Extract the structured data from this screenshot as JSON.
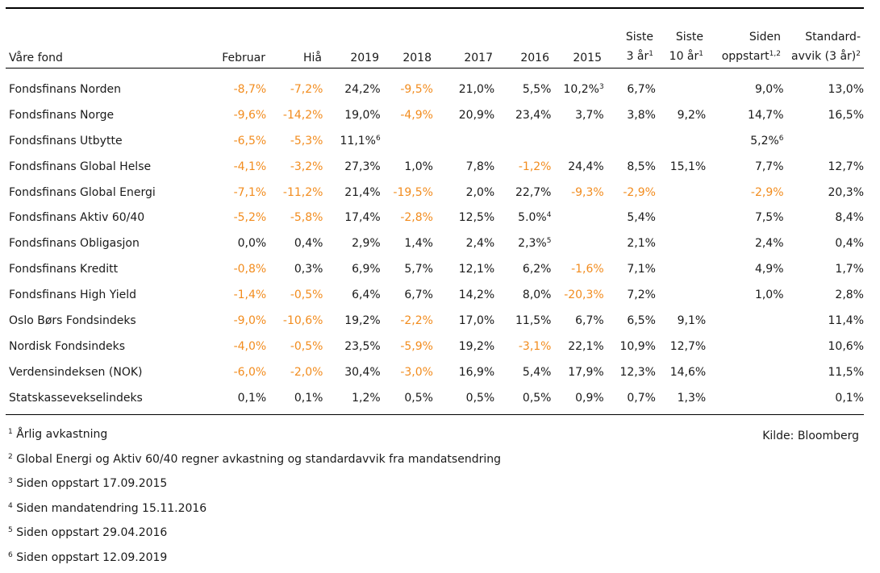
{
  "header": {
    "fund": "Våre fond",
    "februar": "Februar",
    "hia": "Hiå",
    "y2019": "2019",
    "y2018": "2018",
    "y2017": "2017",
    "y2016": "2016",
    "y2015": "2015",
    "siste3_l1": "Siste",
    "siste3_l2": "3 år",
    "siste3_sup": "1",
    "siste10_l1": "Siste",
    "siste10_l2": "10 år",
    "siste10_sup": "1",
    "siden_l1": "Siden",
    "siden_l2": "oppstart",
    "siden_sup": "1,2",
    "std_l1": "Standard-",
    "std_l2": "avvik (3 år)",
    "std_sup": "2"
  },
  "colors": {
    "negative": "#f28c1e",
    "text": "#1a1a1a",
    "rule": "#000000"
  },
  "rows": [
    {
      "name": "Fondsfinans Norden",
      "cells": [
        {
          "v": "-8,7%",
          "neg": true
        },
        {
          "v": "-7,2%",
          "neg": true
        },
        {
          "v": "24,2%"
        },
        {
          "v": "-9,5%",
          "neg": true
        },
        {
          "v": "21,0%"
        },
        {
          "v": "5,5%"
        },
        {
          "v": "10,2%",
          "sup": "3"
        },
        {
          "v": "6,7%"
        },
        {
          "v": ""
        },
        {
          "v": "9,0%"
        },
        {
          "v": "13,0%"
        }
      ]
    },
    {
      "name": "Fondsfinans Norge",
      "cells": [
        {
          "v": "-9,6%",
          "neg": true
        },
        {
          "v": "-14,2%",
          "neg": true
        },
        {
          "v": "19,0%"
        },
        {
          "v": "-4,9%",
          "neg": true
        },
        {
          "v": "20,9%"
        },
        {
          "v": "23,4%"
        },
        {
          "v": "3,7%"
        },
        {
          "v": "3,8%"
        },
        {
          "v": "9,2%"
        },
        {
          "v": "14,7%"
        },
        {
          "v": "16,5%"
        }
      ]
    },
    {
      "name": "Fondsfinans Utbytte",
      "cells": [
        {
          "v": "-6,5%",
          "neg": true
        },
        {
          "v": "-5,3%",
          "neg": true
        },
        {
          "v": "11,1%",
          "sup": "6"
        },
        {
          "v": ""
        },
        {
          "v": ""
        },
        {
          "v": ""
        },
        {
          "v": ""
        },
        {
          "v": ""
        },
        {
          "v": ""
        },
        {
          "v": "5,2%",
          "sup": "6"
        },
        {
          "v": ""
        }
      ]
    },
    {
      "name": "Fondsfinans Global Helse",
      "cells": [
        {
          "v": "-4,1%",
          "neg": true
        },
        {
          "v": "-3,2%",
          "neg": true
        },
        {
          "v": "27,3%"
        },
        {
          "v": "1,0%"
        },
        {
          "v": "7,8%"
        },
        {
          "v": "-1,2%",
          "neg": true
        },
        {
          "v": "24,4%"
        },
        {
          "v": "8,5%"
        },
        {
          "v": "15,1%"
        },
        {
          "v": "7,7%"
        },
        {
          "v": "12,7%"
        }
      ]
    },
    {
      "name": "Fondsfinans Global Energi",
      "cells": [
        {
          "v": "-7,1%",
          "neg": true
        },
        {
          "v": "-11,2%",
          "neg": true
        },
        {
          "v": "21,4%"
        },
        {
          "v": "-19,5%",
          "neg": true
        },
        {
          "v": "2,0%"
        },
        {
          "v": "22,7%"
        },
        {
          "v": "-9,3%",
          "neg": true
        },
        {
          "v": "-2,9%",
          "neg": true
        },
        {
          "v": ""
        },
        {
          "v": "-2,9%",
          "neg": true
        },
        {
          "v": "20,3%"
        }
      ]
    },
    {
      "name": "Fondsfinans Aktiv 60/40",
      "cells": [
        {
          "v": "-5,2%",
          "neg": true
        },
        {
          "v": "-5,8%",
          "neg": true
        },
        {
          "v": "17,4%"
        },
        {
          "v": "-2,8%",
          "neg": true
        },
        {
          "v": "12,5%"
        },
        {
          "v": "5.0%",
          "sup": "4"
        },
        {
          "v": ""
        },
        {
          "v": "5,4%"
        },
        {
          "v": ""
        },
        {
          "v": "7,5%"
        },
        {
          "v": "8,4%"
        }
      ]
    },
    {
      "name": "Fondsfinans Obligasjon",
      "cells": [
        {
          "v": "0,0%"
        },
        {
          "v": "0,4%"
        },
        {
          "v": "2,9%"
        },
        {
          "v": "1,4%"
        },
        {
          "v": "2,4%"
        },
        {
          "v": "2,3%",
          "sup": "5"
        },
        {
          "v": ""
        },
        {
          "v": "2,1%"
        },
        {
          "v": ""
        },
        {
          "v": "2,4%"
        },
        {
          "v": "0,4%"
        }
      ]
    },
    {
      "name": "Fondsfinans Kreditt",
      "cells": [
        {
          "v": "-0,8%",
          "neg": true
        },
        {
          "v": "0,3%"
        },
        {
          "v": "6,9%"
        },
        {
          "v": "5,7%"
        },
        {
          "v": "12,1%"
        },
        {
          "v": "6,2%"
        },
        {
          "v": "-1,6%",
          "neg": true
        },
        {
          "v": "7,1%"
        },
        {
          "v": ""
        },
        {
          "v": "4,9%"
        },
        {
          "v": "1,7%"
        }
      ]
    },
    {
      "name": "Fondsfinans High Yield",
      "cells": [
        {
          "v": "-1,4%",
          "neg": true
        },
        {
          "v": "-0,5%",
          "neg": true
        },
        {
          "v": "6,4%"
        },
        {
          "v": "6,7%"
        },
        {
          "v": "14,2%"
        },
        {
          "v": "8,0%"
        },
        {
          "v": "-20,3%",
          "neg": true
        },
        {
          "v": "7,2%"
        },
        {
          "v": ""
        },
        {
          "v": "1,0%"
        },
        {
          "v": "2,8%"
        }
      ]
    },
    {
      "name": "Oslo Børs Fondsindeks",
      "cells": [
        {
          "v": "-9,0%",
          "neg": true
        },
        {
          "v": "-10,6%",
          "neg": true
        },
        {
          "v": "19,2%"
        },
        {
          "v": "-2,2%",
          "neg": true
        },
        {
          "v": "17,0%"
        },
        {
          "v": "11,5%"
        },
        {
          "v": "6,7%"
        },
        {
          "v": "6,5%"
        },
        {
          "v": "9,1%"
        },
        {
          "v": ""
        },
        {
          "v": "11,4%"
        }
      ]
    },
    {
      "name": "Nordisk Fondsindeks",
      "cells": [
        {
          "v": "-4,0%",
          "neg": true
        },
        {
          "v": "-0,5%",
          "neg": true
        },
        {
          "v": "23,5%"
        },
        {
          "v": "-5,9%",
          "neg": true
        },
        {
          "v": "19,2%"
        },
        {
          "v": "-3,1%",
          "neg": true
        },
        {
          "v": "22,1%"
        },
        {
          "v": "10,9%"
        },
        {
          "v": "12,7%"
        },
        {
          "v": ""
        },
        {
          "v": "10,6%"
        }
      ]
    },
    {
      "name": "Verdensindeksen (NOK)",
      "cells": [
        {
          "v": "-6,0%",
          "neg": true
        },
        {
          "v": "-2,0%",
          "neg": true
        },
        {
          "v": "30,4%"
        },
        {
          "v": "-3,0%",
          "neg": true
        },
        {
          "v": "16,9%"
        },
        {
          "v": "5,4%"
        },
        {
          "v": "17,9%"
        },
        {
          "v": "12,3%"
        },
        {
          "v": "14,6%"
        },
        {
          "v": ""
        },
        {
          "v": "11,5%"
        }
      ]
    },
    {
      "name": "Statskassevekselindeks",
      "cells": [
        {
          "v": "0,1%"
        },
        {
          "v": "0,1%"
        },
        {
          "v": "1,2%"
        },
        {
          "v": "0,5%"
        },
        {
          "v": "0,5%"
        },
        {
          "v": "0,5%"
        },
        {
          "v": "0,9%"
        },
        {
          "v": "0,7%"
        },
        {
          "v": "1,3%"
        },
        {
          "v": ""
        },
        {
          "v": "0,1%"
        }
      ]
    }
  ],
  "footnotes": [
    {
      "num": "1",
      "text": "Årlig avkastning"
    },
    {
      "num": "2",
      "text": "Global Energi og Aktiv 60/40 regner avkastning og standardavvik fra mandatsendring"
    },
    {
      "num": "3",
      "text": "Siden oppstart 17.09.2015"
    },
    {
      "num": "4",
      "text": "Siden mandatendring 15.11.2016"
    },
    {
      "num": "5",
      "text": "Siden oppstart 29.04.2016"
    },
    {
      "num": "6",
      "text": "Siden oppstart 12.09.2019"
    }
  ],
  "source": "Kilde: Bloomberg"
}
